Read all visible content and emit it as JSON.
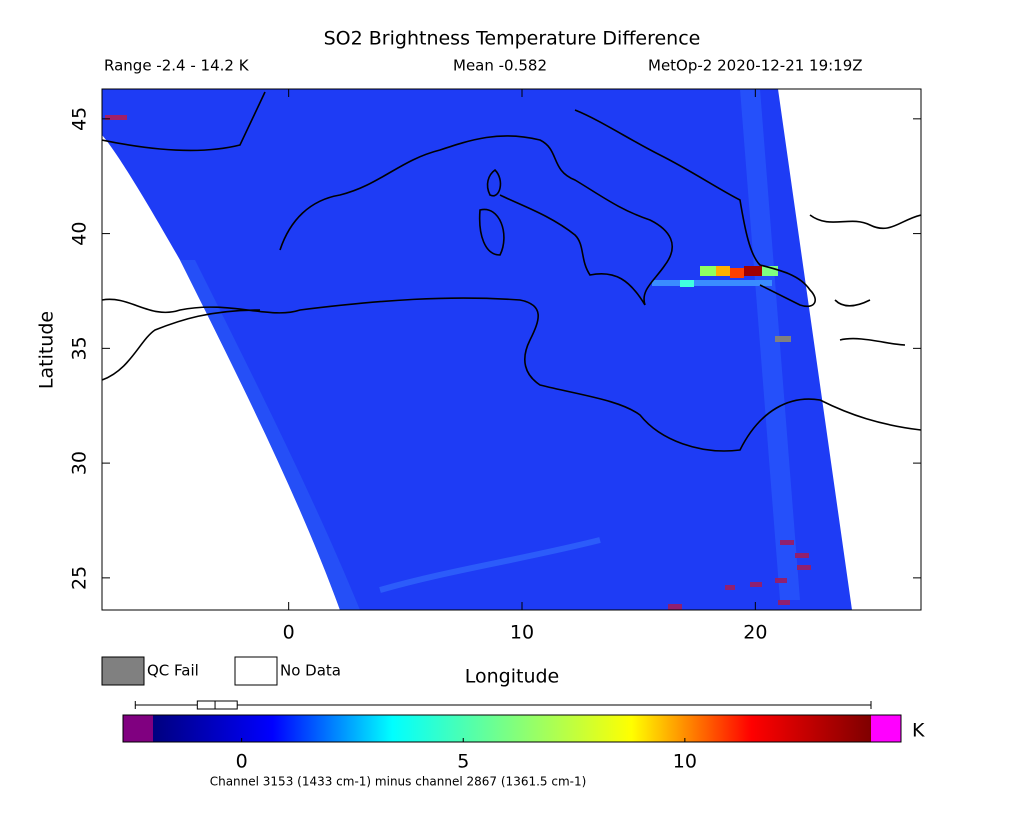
{
  "title": "SO2 Brightness Temperature Difference",
  "range": "Range -2.4 - 14.2 K",
  "mean": "Mean -0.582",
  "source": "MetOp-2 2020-12-21 19:19Z",
  "map": {
    "xlabel": "Longitude",
    "ylabel": "Latitude",
    "xlim": [
      -8,
      27.1
    ],
    "ylim": [
      23.6,
      46.3
    ],
    "xticks": [
      0,
      10,
      20
    ],
    "yticks": [
      25,
      30,
      35,
      40,
      45
    ]
  },
  "legend": [
    {
      "label": "QC Fail",
      "color": "#808080"
    },
    {
      "label": "No Data",
      "color": "#ffffff"
    }
  ],
  "colorbar": {
    "lim": [
      -2,
      14.2
    ],
    "ticks": [
      0,
      5,
      10
    ],
    "unit": "K",
    "colors": [
      "#00007f",
      "#0000ff",
      "#00ffff",
      "#7fff7f",
      "#ffff00",
      "#ff0000",
      "#7f0000"
    ],
    "under_color": "#800080",
    "over_color": "#ff00ff",
    "box": {
      "min": -2.4,
      "q1": -1.0,
      "median": -0.6,
      "q3": -0.1,
      "max": 14.2
    }
  },
  "footnote": "Channel 3153 (1433 cm-1) minus channel 2867 (1361.5 cm-1)"
}
